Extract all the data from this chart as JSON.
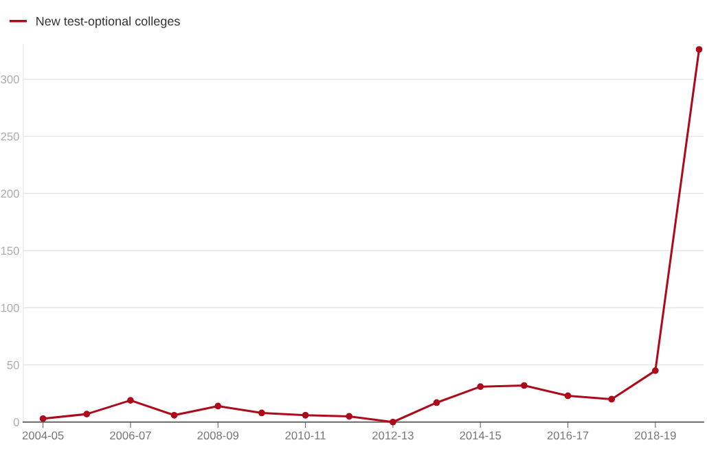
{
  "chart_data": {
    "type": "line",
    "categories": [
      "2004-05",
      null,
      "2006-07",
      null,
      "2008-09",
      null,
      "2010-11",
      null,
      "2012-13",
      null,
      "2014-15",
      null,
      "2016-17",
      null,
      "2018-19",
      null
    ],
    "series": [
      {
        "name": "New test-optional colleges",
        "color": "#ad0a1b",
        "values": [
          3,
          7,
          19,
          6,
          14,
          8,
          6,
          5,
          0,
          17,
          31,
          32,
          23,
          20,
          45,
          326
        ]
      }
    ],
    "ylim": [
      0,
      330
    ],
    "yticks": [
      0,
      50,
      100,
      150,
      200,
      250,
      300
    ],
    "grid": "y",
    "legend": "top left",
    "marker": "circle",
    "line_style": "solid"
  }
}
